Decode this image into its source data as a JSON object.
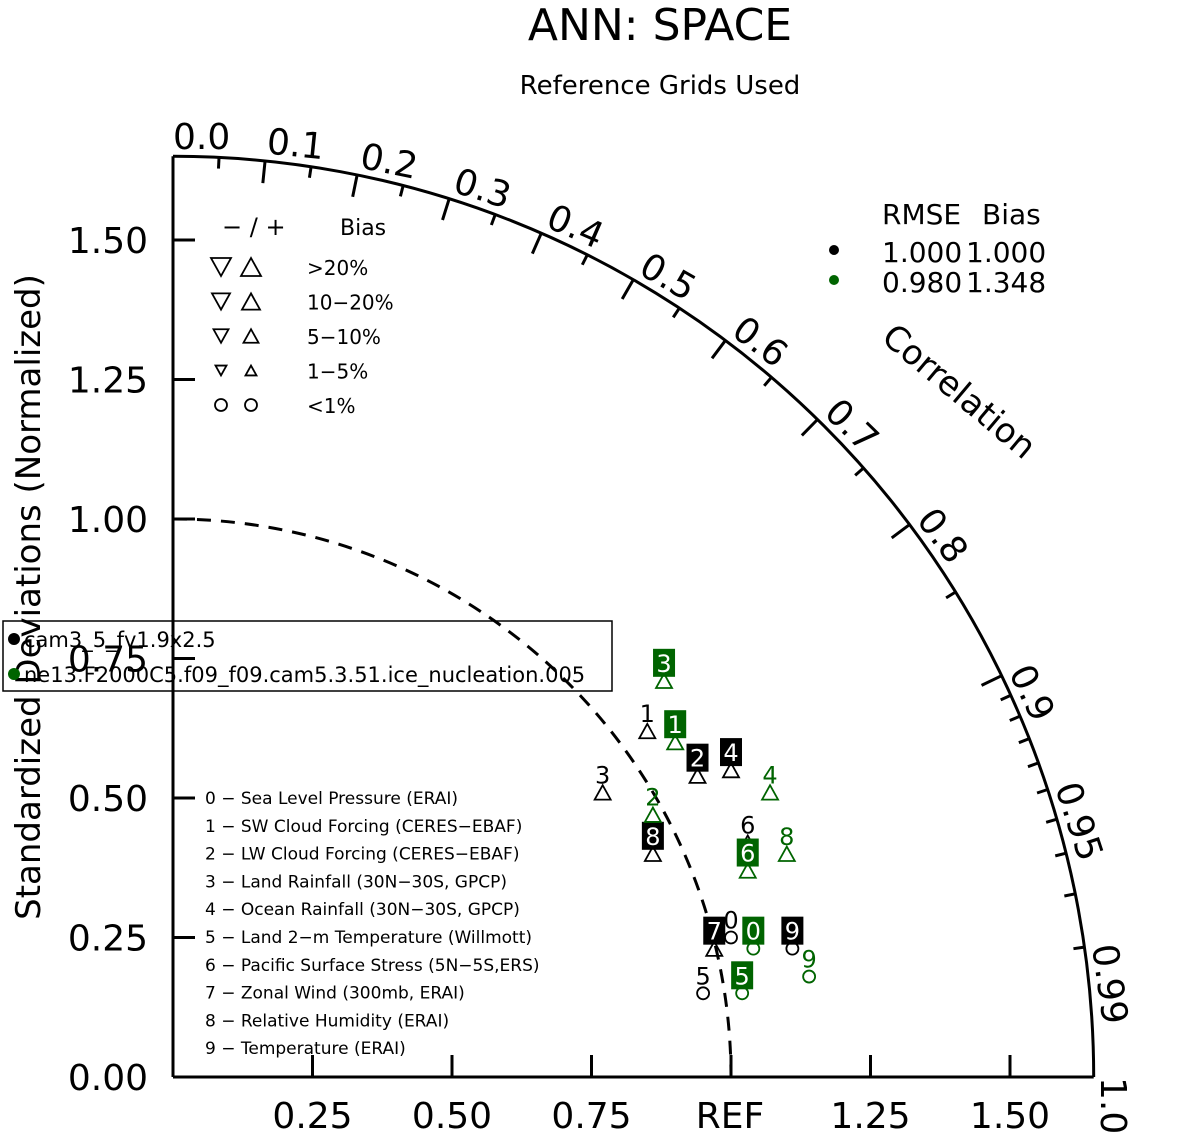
{
  "chart_data": {
    "type": "scatter",
    "subtype": "taylor-diagram",
    "title": "ANN: SPACE",
    "subtitle": "Reference Grids Used",
    "ylabel": "Standardized Deviations (Normalized)",
    "correlation_label": "Correlation",
    "ref_label": "REF",
    "ylim": [
      0,
      1.65
    ],
    "xlim": [
      0,
      1.65
    ],
    "y_ticks": [
      "0.00",
      "0.25",
      "0.50",
      "0.75",
      "1.00",
      "1.25",
      "1.50"
    ],
    "x_ticks": [
      "0.25",
      "0.50",
      "0.75",
      "1.25",
      "1.50"
    ],
    "correlation_major_ticks": [
      "0.0",
      "0.1",
      "0.2",
      "0.3",
      "0.4",
      "0.5",
      "0.6",
      "0.7",
      "0.8",
      "0.9",
      "0.95",
      "0.99",
      "1.0"
    ],
    "bias_legend": {
      "header": [
        "− / +",
        "Bias"
      ],
      "rows": [
        {
          "label": ">20%",
          "marker": "triangle"
        },
        {
          "label": "10−20%",
          "marker": "triangle"
        },
        {
          "label": "5−10%",
          "marker": "triangle"
        },
        {
          "label": "1−5%",
          "marker": "triangle"
        },
        {
          "label": "<1%",
          "marker": "circle"
        }
      ]
    },
    "rmse_legend": {
      "header": [
        "RMSE",
        "Bias"
      ],
      "rows": [
        {
          "rmse": "1.000",
          "bias": "1.000",
          "color": "#000000"
        },
        {
          "rmse": "0.980",
          "bias": "1.348",
          "color": "#006400"
        }
      ]
    },
    "series": [
      {
        "name": "cam3_5_fv1.9x2.5",
        "color": "#000000",
        "points": [
          {
            "id": "0",
            "x": 1.0,
            "y": 0.25,
            "marker": "circle",
            "boxed": false
          },
          {
            "id": "1",
            "x": 0.85,
            "y": 0.62,
            "marker": "triangle",
            "boxed": false
          },
          {
            "id": "2",
            "x": 0.94,
            "y": 0.54,
            "marker": "triangle",
            "boxed": true
          },
          {
            "id": "3",
            "x": 0.77,
            "y": 0.51,
            "marker": "triangle",
            "boxed": false
          },
          {
            "id": "4",
            "x": 1.0,
            "y": 0.55,
            "marker": "triangle",
            "boxed": true
          },
          {
            "id": "5",
            "x": 0.95,
            "y": 0.15,
            "marker": "circle",
            "boxed": false
          },
          {
            "id": "6",
            "x": 1.03,
            "y": 0.42,
            "marker": "triangle",
            "boxed": false
          },
          {
            "id": "7",
            "x": 0.97,
            "y": 0.23,
            "marker": "triangle",
            "boxed": true
          },
          {
            "id": "8",
            "x": 0.86,
            "y": 0.4,
            "marker": "triangle",
            "boxed": true
          },
          {
            "id": "9",
            "x": 1.11,
            "y": 0.23,
            "marker": "circle",
            "boxed": true
          }
        ]
      },
      {
        "name": "ne13.F2000C5.f09_f09.cam5.3.51.ice_nucleation.005",
        "color": "#006400",
        "points": [
          {
            "id": "0",
            "x": 1.04,
            "y": 0.23,
            "marker": "circle",
            "boxed": true
          },
          {
            "id": "1",
            "x": 0.9,
            "y": 0.6,
            "marker": "triangle",
            "boxed": true
          },
          {
            "id": "2",
            "x": 0.86,
            "y": 0.47,
            "marker": "triangle",
            "boxed": false
          },
          {
            "id": "3",
            "x": 0.88,
            "y": 0.71,
            "marker": "triangle",
            "boxed": true
          },
          {
            "id": "4",
            "x": 1.07,
            "y": 0.51,
            "marker": "triangle",
            "boxed": false
          },
          {
            "id": "5",
            "x": 1.02,
            "y": 0.15,
            "marker": "circle",
            "boxed": true
          },
          {
            "id": "6",
            "x": 1.03,
            "y": 0.37,
            "marker": "triangle",
            "boxed": true
          },
          {
            "id": "8",
            "x": 1.1,
            "y": 0.4,
            "marker": "triangle",
            "boxed": false
          },
          {
            "id": "9",
            "x": 1.14,
            "y": 0.18,
            "marker": "circle",
            "boxed": false
          }
        ]
      }
    ],
    "variables": [
      "0 − Sea Level Pressure (ERAI)",
      "1 − SW Cloud Forcing (CERES−EBAF)",
      "2 − LW Cloud Forcing (CERES−EBAF)",
      "3 − Land Rainfall (30N−30S, GPCP)",
      "4 − Ocean Rainfall (30N−30S, GPCP)",
      "5 − Land 2−m Temperature (Willmott)",
      "6 − Pacific Surface Stress (5N−5S,ERS)",
      "7 − Zonal Wind (300mb, ERAI)",
      "8 − Relative Humidity (ERAI)",
      "9 − Temperature (ERAI)"
    ]
  }
}
